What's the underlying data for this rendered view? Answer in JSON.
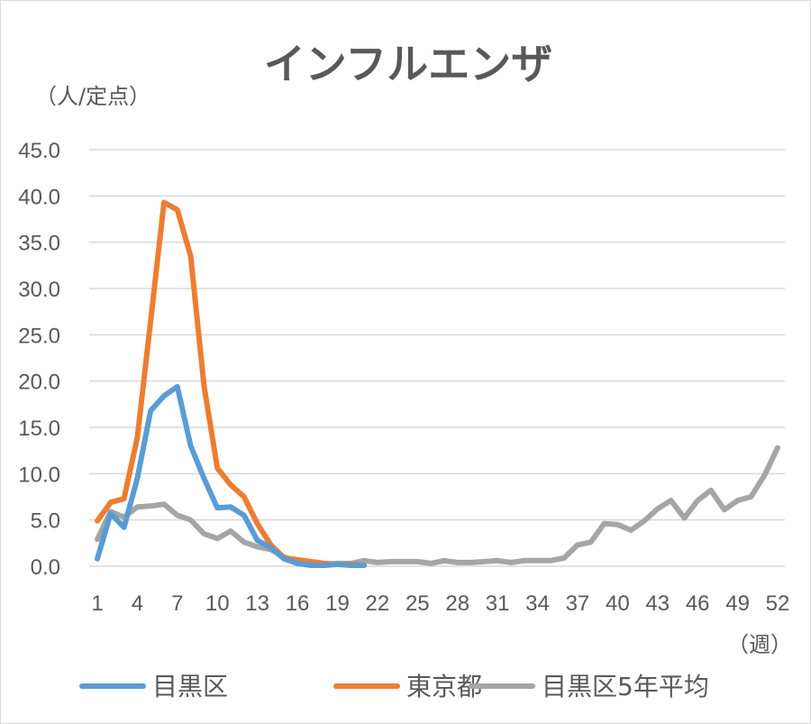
{
  "chart_data": {
    "type": "line",
    "title": "インフルエンザ",
    "ylabel": "（人/定点）",
    "xlabel": "（週）",
    "ylim": [
      0,
      45
    ],
    "xlim": [
      1,
      52
    ],
    "yticks": [
      "0.0",
      "5.0",
      "10.0",
      "15.0",
      "20.0",
      "25.0",
      "30.0",
      "35.0",
      "40.0",
      "45.0"
    ],
    "xticks": [
      "1",
      "4",
      "7",
      "10",
      "13",
      "16",
      "19",
      "22",
      "25",
      "28",
      "31",
      "34",
      "37",
      "40",
      "43",
      "46",
      "49",
      "52"
    ],
    "grid": true,
    "legend_position": "bottom",
    "series": [
      {
        "name": "目黒区",
        "color": "#5b9bd5",
        "x": [
          1,
          2,
          3,
          4,
          5,
          6,
          7,
          8,
          9,
          10,
          11,
          12,
          13,
          14,
          15,
          16,
          17,
          18,
          19,
          20,
          21
        ],
        "values": [
          0.8,
          5.7,
          4.2,
          9.5,
          16.8,
          18.4,
          19.4,
          13.0,
          9.5,
          6.3,
          6.4,
          5.5,
          2.8,
          2.0,
          0.8,
          0.3,
          0.1,
          0.1,
          0.2,
          0.1,
          0.1
        ]
      },
      {
        "name": "東京都",
        "color": "#ed7d31",
        "x": [
          1,
          2,
          3,
          4,
          5,
          6,
          7,
          8,
          9,
          10,
          11,
          12,
          13,
          14,
          15,
          16,
          17,
          18,
          19,
          20,
          21
        ],
        "values": [
          4.9,
          6.9,
          7.3,
          13.9,
          26.5,
          39.3,
          38.5,
          33.5,
          19.5,
          10.6,
          8.8,
          7.5,
          4.6,
          2.3,
          0.9,
          0.7,
          0.5,
          0.3,
          0.2,
          0.2,
          0.1
        ]
      },
      {
        "name": "目黒区5年平均",
        "color": "#a5a5a5",
        "x": [
          1,
          2,
          3,
          4,
          5,
          6,
          7,
          8,
          9,
          10,
          11,
          12,
          13,
          14,
          15,
          16,
          17,
          18,
          19,
          20,
          21,
          22,
          23,
          24,
          25,
          26,
          27,
          28,
          29,
          30,
          31,
          32,
          33,
          34,
          35,
          36,
          37,
          38,
          39,
          40,
          41,
          42,
          43,
          44,
          45,
          46,
          47,
          48,
          49,
          50,
          51,
          52
        ],
        "values": [
          2.9,
          5.9,
          5.3,
          6.4,
          6.5,
          6.7,
          5.5,
          5.0,
          3.5,
          3.0,
          3.8,
          2.6,
          2.1,
          1.8,
          1.0,
          0.5,
          0.3,
          0.2,
          0.3,
          0.3,
          0.6,
          0.4,
          0.5,
          0.5,
          0.5,
          0.3,
          0.6,
          0.4,
          0.4,
          0.5,
          0.6,
          0.4,
          0.6,
          0.6,
          0.6,
          0.9,
          2.3,
          2.6,
          4.6,
          4.5,
          3.9,
          4.9,
          6.2,
          7.1,
          5.2,
          7.1,
          8.2,
          6.1,
          7.1,
          7.5,
          9.8,
          12.8
        ]
      }
    ]
  }
}
